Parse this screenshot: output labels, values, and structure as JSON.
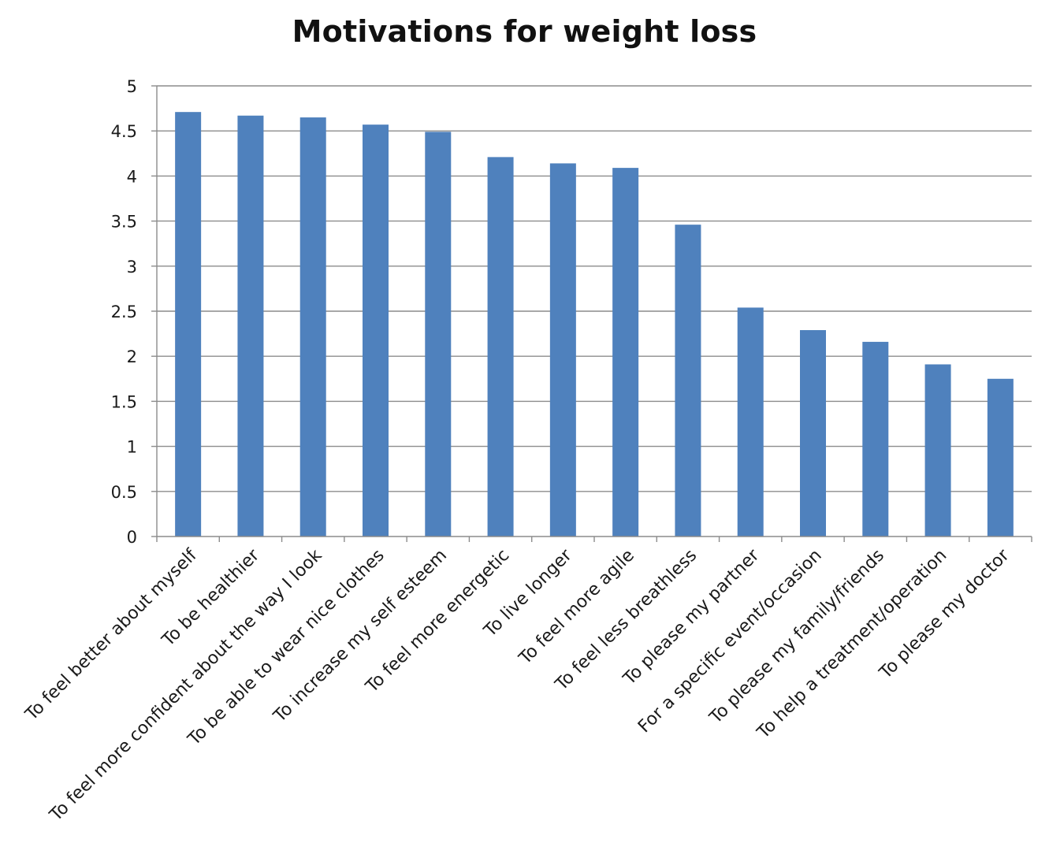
{
  "chart_data": {
    "type": "bar",
    "title": "Motivations for weight loss",
    "xlabel": "",
    "ylabel": "",
    "ylim": [
      0,
      5
    ],
    "yticks": [
      "0",
      "0.5",
      "1",
      "1.5",
      "2",
      "2.5",
      "3",
      "3.5",
      "4",
      "4.5",
      "5"
    ],
    "grid": true,
    "legend": "none",
    "bar_color": "#4f81bd",
    "categories": [
      "To feel better about myself",
      "To be healthier",
      "To feel more confident about the way I look",
      "To be able to wear nice clothes",
      "To increase my self esteem",
      "To feel more energetic",
      "To live longer",
      "To feel more agile",
      "To feel less breathless",
      "To please my partner",
      "For a specific event/occasion",
      "To please my family/friends",
      "To help a treatment/operation",
      "To please my doctor"
    ],
    "values": [
      4.71,
      4.67,
      4.65,
      4.57,
      4.49,
      4.21,
      4.14,
      4.09,
      3.46,
      2.54,
      2.29,
      2.16,
      1.91,
      1.75
    ]
  }
}
